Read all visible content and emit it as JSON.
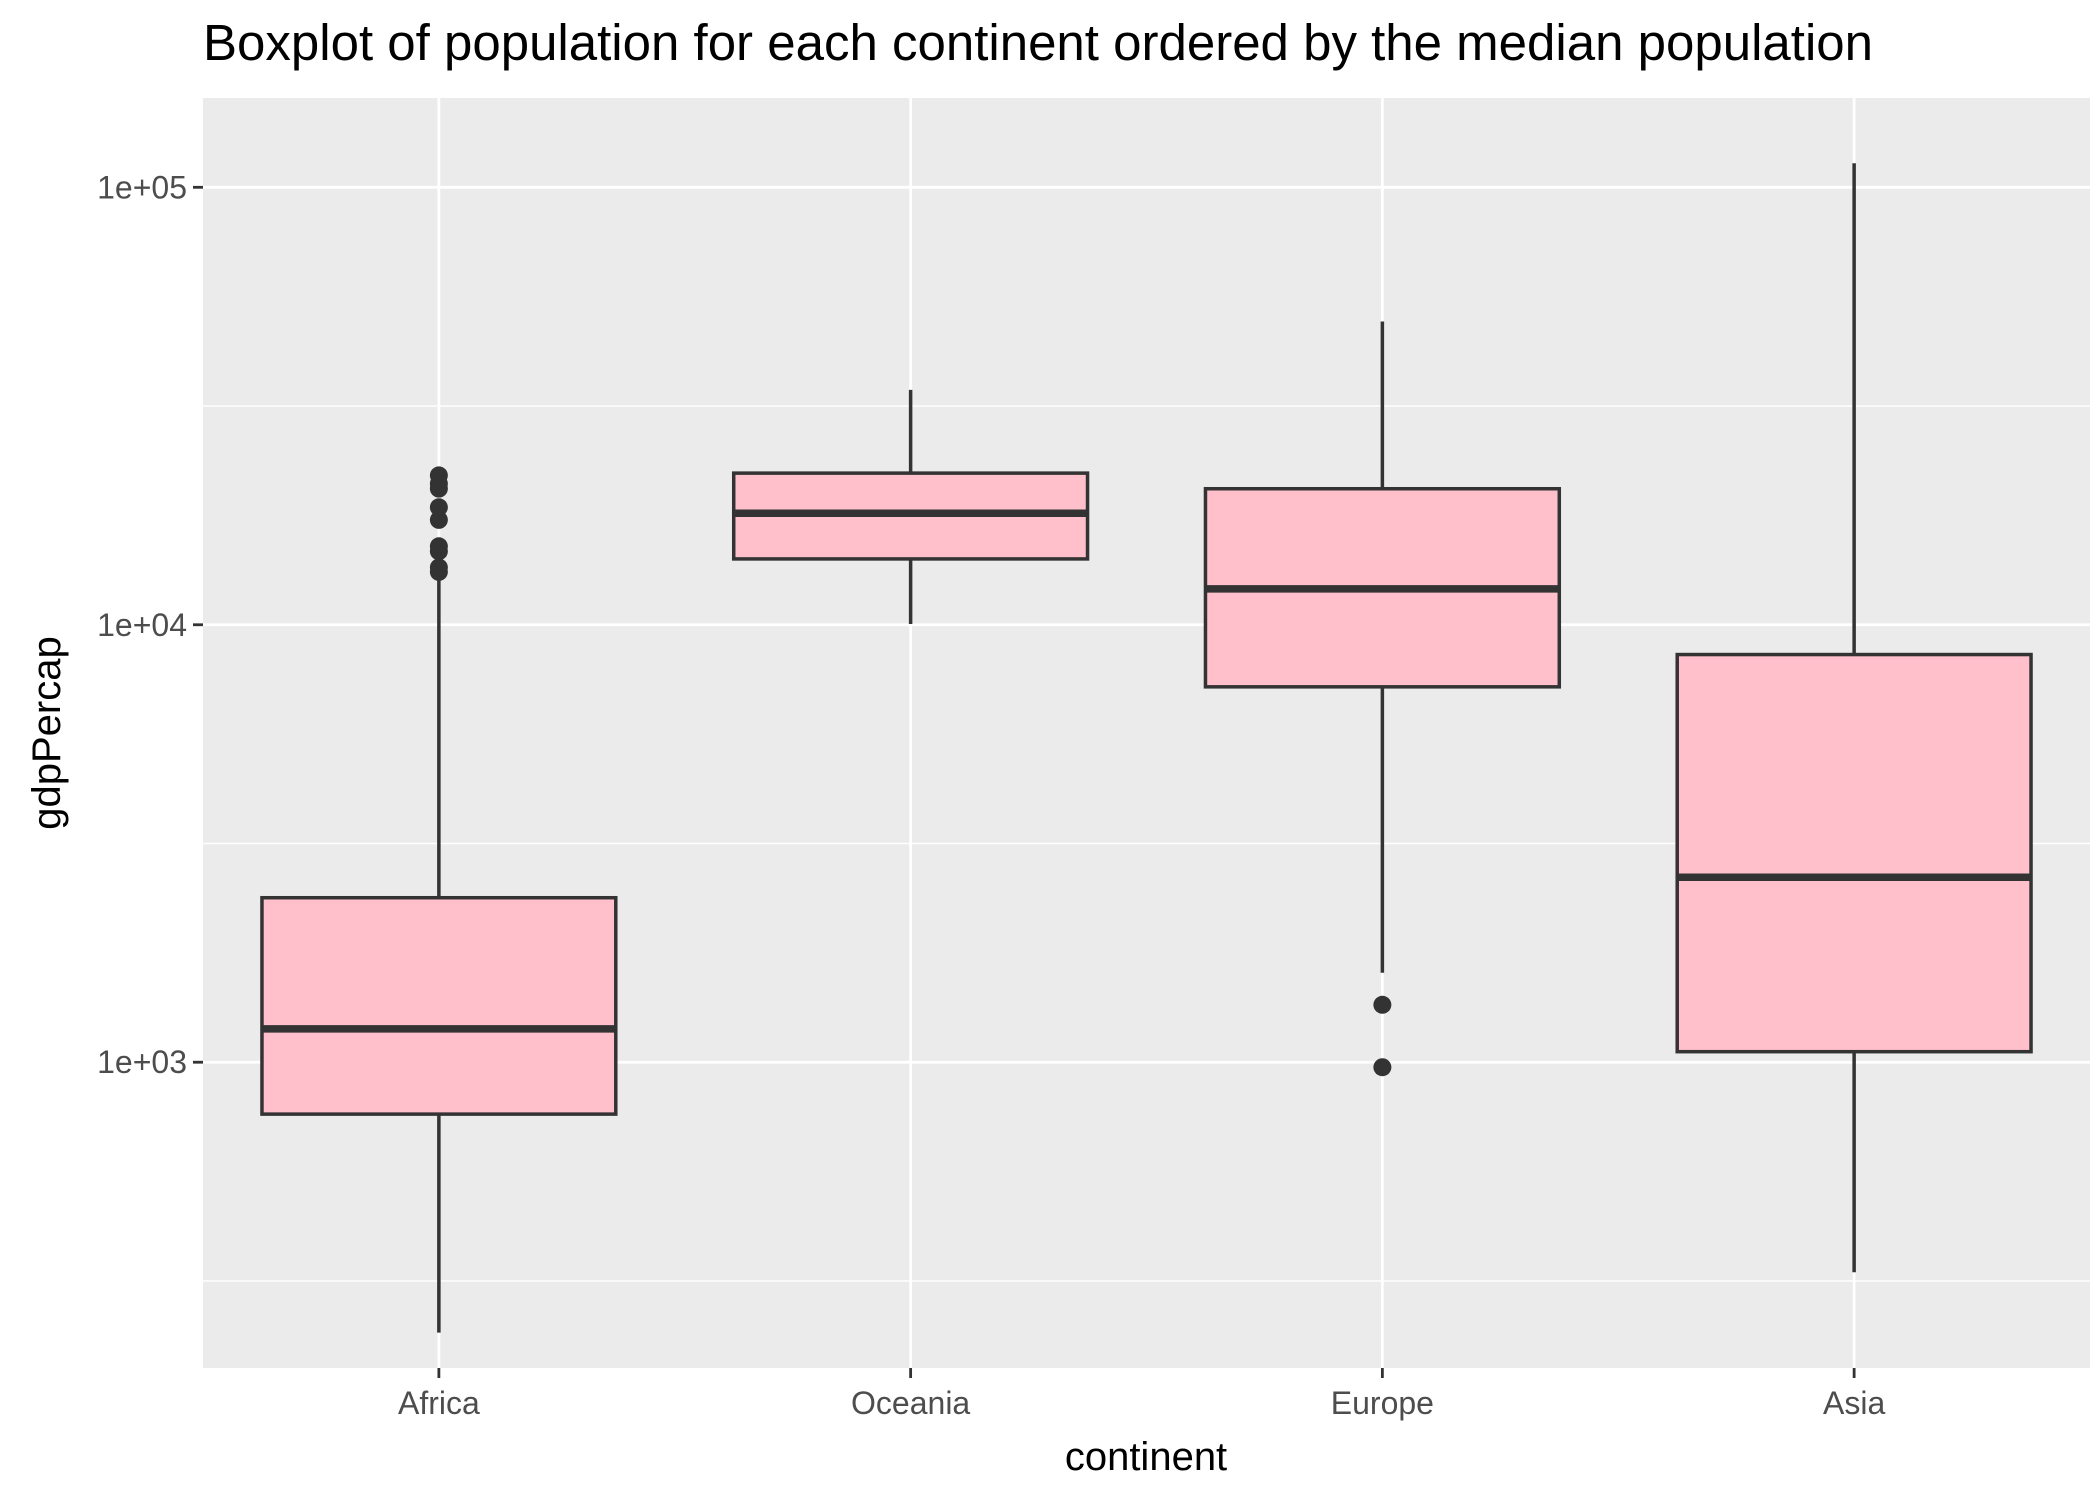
{
  "chart_data": {
    "type": "boxplot",
    "title": "Boxplot of population for each continent ordered by the median population",
    "xlabel": "continent",
    "ylabel": "gdpPercap",
    "y_scale": "log10",
    "ylim": [
      200,
      160000
    ],
    "y_ticks": [
      {
        "value": 1000,
        "label": "1e+03"
      },
      {
        "value": 10000,
        "label": "1e+04"
      },
      {
        "value": 100000,
        "label": "1e+05"
      }
    ],
    "grid": true,
    "background": "#ebebeb",
    "box_fill": "#ffc0cb",
    "line_color": "#333333",
    "categories": [
      "Africa",
      "Oceania",
      "Europe",
      "Asia"
    ],
    "boxes": [
      {
        "category": "Africa",
        "whisker_low": 241,
        "q1": 761,
        "median": 1192,
        "q3": 2377,
        "whisker_high": 13000,
        "outliers": [
          13206,
          13522,
          14722,
          15113,
          17364,
          18558,
          20473,
          21011,
          21951
        ]
      },
      {
        "category": "Oceania",
        "whisker_low": 10040,
        "q1": 14142,
        "median": 17983,
        "q3": 22214,
        "whisker_high": 34435,
        "outliers": []
      },
      {
        "category": "Europe",
        "whisker_low": 1601,
        "q1": 7213,
        "median": 12082,
        "q3": 20461,
        "whisker_high": 49357,
        "outliers": [
          974,
          1353
        ]
      },
      {
        "category": "Asia",
        "whisker_low": 331,
        "q1": 1057,
        "median": 2647,
        "q3": 8549,
        "whisker_high": 113523,
        "outliers": []
      }
    ]
  }
}
